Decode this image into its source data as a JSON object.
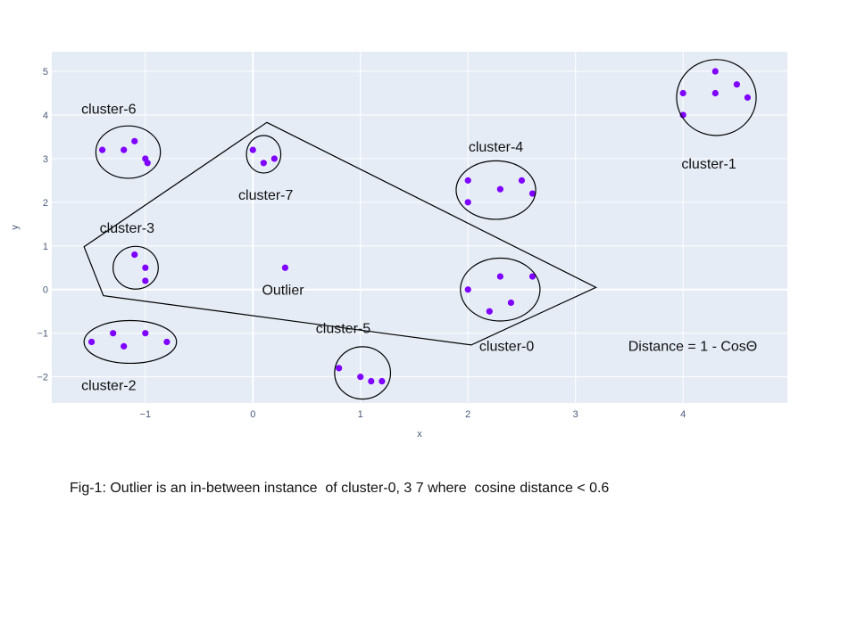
{
  "chart_data": {
    "type": "scatter",
    "xlabel": "x",
    "ylabel": "y",
    "xlim": [
      -1.87,
      4.97
    ],
    "ylim": [
      -2.6,
      5.45
    ],
    "x_ticks": [
      -1,
      0,
      1,
      2,
      3,
      4
    ],
    "y_ticks": [
      -2,
      -1,
      0,
      1,
      2,
      3,
      4,
      5
    ],
    "x_tick_labels": [
      "−1",
      "0",
      "1",
      "2",
      "3",
      "4"
    ],
    "y_tick_labels": [
      "−2",
      "−1",
      "0",
      "1",
      "2",
      "3",
      "4",
      "5"
    ],
    "grid": true,
    "colors": {
      "plot_bg": "#e5ecf6",
      "grid": "#ffffff",
      "marker": "#7f00ff",
      "annotation": "#000000"
    },
    "points": [
      {
        "x": 2.0,
        "y": 0.0
      },
      {
        "x": 2.2,
        "y": -0.5
      },
      {
        "x": 2.3,
        "y": 0.3
      },
      {
        "x": 2.4,
        "y": -0.3
      },
      {
        "x": 2.6,
        "y": 0.3
      },
      {
        "x": 4.0,
        "y": 4.5
      },
      {
        "x": 4.0,
        "y": 4.0
      },
      {
        "x": 4.3,
        "y": 5.0
      },
      {
        "x": 4.3,
        "y": 4.5
      },
      {
        "x": 4.5,
        "y": 4.7
      },
      {
        "x": 4.6,
        "y": 4.4
      },
      {
        "x": -1.5,
        "y": -1.2
      },
      {
        "x": -1.3,
        "y": -1.0
      },
      {
        "x": -1.2,
        "y": -1.3
      },
      {
        "x": -1.0,
        "y": -1.0
      },
      {
        "x": -0.8,
        "y": -1.2
      },
      {
        "x": -1.1,
        "y": 0.8
      },
      {
        "x": -1.0,
        "y": 0.5
      },
      {
        "x": -1.0,
        "y": 0.2
      },
      {
        "x": 2.0,
        "y": 2.5
      },
      {
        "x": 2.0,
        "y": 2.0
      },
      {
        "x": 2.3,
        "y": 2.3
      },
      {
        "x": 2.5,
        "y": 2.5
      },
      {
        "x": 2.6,
        "y": 2.2
      },
      {
        "x": 0.8,
        "y": -1.8
      },
      {
        "x": 1.0,
        "y": -2.0
      },
      {
        "x": 1.1,
        "y": -2.1
      },
      {
        "x": 1.2,
        "y": -2.1
      },
      {
        "x": -1.4,
        "y": 3.2
      },
      {
        "x": -1.2,
        "y": 3.2
      },
      {
        "x": -1.1,
        "y": 3.4
      },
      {
        "x": -1.0,
        "y": 3.0
      },
      {
        "x": -0.98,
        "y": 2.9
      },
      {
        "x": 0.0,
        "y": 3.2
      },
      {
        "x": 0.1,
        "y": 2.9
      },
      {
        "x": 0.2,
        "y": 3.0
      },
      {
        "x": 0.3,
        "y": 0.5
      }
    ],
    "clusters": [
      {
        "label": "cluster-0",
        "cx": 2.3,
        "cy": 0.0,
        "rx": 0.37,
        "ry": 0.72,
        "label_x": 2.36,
        "label_y": -1.28
      },
      {
        "label": "cluster-1",
        "cx": 4.31,
        "cy": 4.4,
        "rx": 0.37,
        "ry": 0.87,
        "label_x": 4.24,
        "label_y": 2.9
      },
      {
        "label": "cluster-2",
        "cx": -1.14,
        "cy": -1.2,
        "rx": 0.43,
        "ry": 0.49,
        "label_x": -1.34,
        "label_y": -2.18
      },
      {
        "label": "cluster-3",
        "cx": -1.09,
        "cy": 0.5,
        "rx": 0.21,
        "ry": 0.49,
        "label_x": -1.17,
        "label_y": 1.43
      },
      {
        "label": "cluster-4",
        "cx": 2.26,
        "cy": 2.28,
        "rx": 0.37,
        "ry": 0.67,
        "label_x": 2.26,
        "label_y": 3.28
      },
      {
        "label": "cluster-5",
        "cx": 1.02,
        "cy": -1.91,
        "rx": 0.26,
        "ry": 0.6,
        "label_x": 0.84,
        "label_y": -0.87
      },
      {
        "label": "cluster-6",
        "cx": -1.16,
        "cy": 3.15,
        "rx": 0.3,
        "ry": 0.6,
        "label_x": -1.34,
        "label_y": 4.15
      },
      {
        "label": "cluster-7",
        "cx": 0.1,
        "cy": 3.1,
        "rx": 0.16,
        "ry": 0.43,
        "label_x": 0.12,
        "label_y": 2.18
      }
    ],
    "outlier_label": {
      "text": "Outlier",
      "x": 0.28,
      "y": 0.0
    },
    "hull_polygon": [
      {
        "x": 0.13,
        "y": 3.83
      },
      {
        "x": 3.19,
        "y": 0.05
      },
      {
        "x": 2.03,
        "y": -1.27
      },
      {
        "x": -1.39,
        "y": -0.14
      },
      {
        "x": -1.57,
        "y": 0.98
      }
    ],
    "formula_annotation": {
      "text": "Distance = 1 - CosΘ",
      "x": 4.09,
      "y": -1.28
    }
  },
  "caption": "Fig-1: Outlier is an in-between instance  of cluster-0, 3 7 where  cosine distance < 0.6"
}
